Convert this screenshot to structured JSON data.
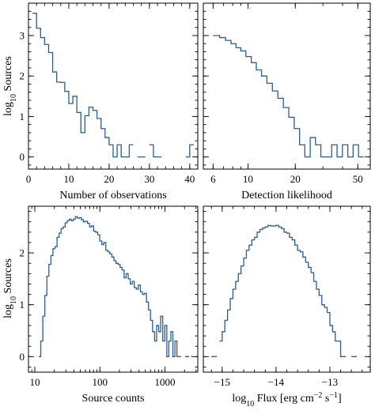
{
  "chart_data": [
    {
      "type": "step",
      "xlabel": "Number of observations",
      "ylabel": "log10 Sources",
      "xscale": "linear",
      "xlim": [
        0,
        42
      ],
      "ylim": [
        -0.3,
        3.8
      ],
      "xticks": [
        {
          "v": 0,
          "label": "0"
        },
        {
          "v": 10,
          "label": "10"
        },
        {
          "v": 20,
          "label": "20"
        },
        {
          "v": 30,
          "label": "30"
        },
        {
          "v": 40,
          "label": "40"
        }
      ],
      "yticks": [
        {
          "v": 0,
          "label": "0"
        },
        {
          "v": 1,
          "label": "1"
        },
        {
          "v": 2,
          "label": "2"
        },
        {
          "v": 3,
          "label": "3"
        }
      ],
      "bin_edges": [
        1,
        2,
        3,
        4,
        5,
        6,
        7,
        8,
        9,
        10,
        11,
        12,
        13,
        14,
        15,
        16,
        17,
        18,
        19,
        20,
        21,
        22,
        23,
        24,
        25,
        26,
        27,
        28,
        29,
        30,
        31,
        32,
        33,
        34,
        35,
        36,
        37,
        38,
        39,
        40,
        41
      ],
      "values": [
        3.55,
        3.18,
        2.95,
        2.78,
        2.58,
        2.1,
        1.85,
        1.84,
        1.62,
        1.32,
        1.5,
        1.1,
        0.6,
        1.02,
        1.23,
        1.15,
        0.95,
        0.7,
        0.48,
        0.3,
        0.0,
        0.3,
        0.0,
        0.0,
        0.3,
        null,
        0.0,
        0.0,
        null,
        0.3,
        0.0,
        0.0,
        null,
        null,
        null,
        null,
        null,
        null,
        0.0,
        0.3
      ]
    },
    {
      "type": "step",
      "xlabel": "Detection likelihood",
      "ylabel": "",
      "xscale": "log",
      "xlim": [
        5.2,
        60
      ],
      "ylim": [
        -0.3,
        3.8
      ],
      "xticks": [
        {
          "v": 6,
          "label": "6"
        },
        {
          "v": 10,
          "label": "10"
        },
        {
          "v": 20,
          "label": "20"
        },
        {
          "v": 50,
          "label": "50"
        }
      ],
      "yticks": [
        {
          "v": 0,
          "label": ""
        },
        {
          "v": 1,
          "label": ""
        },
        {
          "v": 2,
          "label": ""
        },
        {
          "v": 3,
          "label": ""
        }
      ],
      "bin_edges": [
        6.0,
        6.6,
        7.2,
        7.8,
        8.4,
        9.0,
        9.7,
        10.5,
        11.3,
        12.2,
        13.2,
        14.3,
        15.5,
        16.8,
        18.2,
        19.7,
        21.3,
        23.0,
        24.9,
        26.9,
        29.1,
        31.5,
        34.1,
        36.9,
        39.9,
        43.2,
        46.7,
        50.5,
        54.6
      ],
      "values": [
        3.0,
        2.95,
        2.88,
        2.8,
        2.7,
        2.62,
        2.48,
        2.33,
        2.15,
        2.0,
        1.82,
        1.63,
        1.45,
        1.22,
        0.98,
        0.7,
        0.3,
        0.0,
        0.48,
        0.3,
        0.0,
        0.0,
        0.3,
        0.0,
        0.3,
        0.0,
        0.3,
        0.0
      ]
    },
    {
      "type": "step",
      "xlabel": "Source counts",
      "ylabel": "log10 Sources",
      "xscale": "log",
      "xlim": [
        8,
        3200
      ],
      "ylim": [
        -0.3,
        2.9
      ],
      "xticks": [
        {
          "v": 10,
          "label": "10"
        },
        {
          "v": 100,
          "label": "100"
        },
        {
          "v": 1000,
          "label": "1000"
        }
      ],
      "yticks": [
        {
          "v": 0,
          "label": "0"
        },
        {
          "v": 1,
          "label": "1"
        },
        {
          "v": 2,
          "label": "2"
        }
      ],
      "bin_edges": [
        11.5,
        12.36,
        13.28,
        14.27,
        15.34,
        16.48,
        17.71,
        19.03,
        20.45,
        21.98,
        23.62,
        25.38,
        27.27,
        29.3,
        31.49,
        33.84,
        36.36,
        39.07,
        41.99,
        45.12,
        48.48,
        52.1,
        55.98,
        60.16,
        64.64,
        69.46,
        74.64,
        80.21,
        86.19,
        92.62,
        99.53,
        106.95,
        114.93,
        123.5,
        132.71,
        142.61,
        153.25,
        164.68,
        176.96,
        190.15,
        204.33,
        219.57,
        235.95,
        253.54,
        272.45,
        292.77,
        314.6,
        338.07,
        363.28,
        390.37,
        419.48,
        450.77,
        484.39,
        520.51,
        559.33,
        601.05,
        645.87,
        694.04,
        745.8,
        801.43,
        861.2,
        925.43,
        994.45,
        1068.61,
        1148.31,
        1233.95,
        1325.98,
        1424.87,
        1531.14,
        1645.33,
        1768.04,
        1899.9,
        2041.6,
        2193.86,
        2357.48,
        2533.31,
        2722.24
      ],
      "values": [
        0.0,
        0.3,
        0.78,
        1.18,
        1.55,
        1.78,
        1.95,
        2.08,
        2.12,
        2.3,
        2.38,
        2.47,
        2.5,
        2.58,
        2.62,
        2.65,
        2.62,
        2.65,
        2.7,
        2.67,
        2.68,
        2.64,
        2.6,
        2.61,
        2.57,
        2.5,
        2.52,
        2.42,
        2.4,
        2.35,
        2.23,
        2.16,
        2.2,
        2.05,
        2.02,
        1.98,
        1.92,
        1.85,
        1.8,
        1.78,
        1.72,
        1.67,
        1.52,
        1.6,
        1.5,
        1.4,
        1.45,
        1.33,
        1.3,
        1.38,
        1.25,
        1.2,
        1.22,
        1.05,
        0.9,
        0.7,
        0.48,
        0.3,
        0.6,
        0.48,
        0.78,
        0.3,
        0.6,
        0.0,
        0.3,
        0.48,
        0.0,
        0.3,
        0.0,
        0.0,
        null,
        null,
        0.0,
        0.0,
        null,
        0.0
      ]
    },
    {
      "type": "step",
      "xlabel": "log10 Flux [erg cm−2 s−1]",
      "ylabel": "",
      "xscale": "linear",
      "xlim": [
        -15.35,
        -12.25
      ],
      "ylim": [
        -0.3,
        2.9
      ],
      "xticks": [
        {
          "v": -15,
          "label": "−15"
        },
        {
          "v": -14,
          "label": "−14"
        },
        {
          "v": -13,
          "label": "−13"
        }
      ],
      "yticks": [
        {
          "v": 0,
          "label": ""
        },
        {
          "v": 1,
          "label": ""
        },
        {
          "v": 2,
          "label": ""
        }
      ],
      "bin_edges": [
        -15.2,
        -15.15,
        -15.1,
        -15.05,
        -15.0,
        -14.95,
        -14.9,
        -14.85,
        -14.8,
        -14.75,
        -14.7,
        -14.65,
        -14.6,
        -14.55,
        -14.5,
        -14.45,
        -14.4,
        -14.35,
        -14.3,
        -14.25,
        -14.2,
        -14.15,
        -14.1,
        -14.05,
        -14.0,
        -13.95,
        -13.9,
        -13.85,
        -13.8,
        -13.75,
        -13.7,
        -13.65,
        -13.6,
        -13.55,
        -13.5,
        -13.45,
        -13.4,
        -13.35,
        -13.3,
        -13.25,
        -13.2,
        -13.15,
        -13.1,
        -13.05,
        -13.0,
        -12.95,
        -12.9,
        -12.85,
        -12.8,
        -12.75,
        -12.7,
        -12.65,
        -12.6,
        -12.55,
        -12.5
      ],
      "values": [
        0.0,
        0.0,
        null,
        0.3,
        0.48,
        0.7,
        0.9,
        1.12,
        1.3,
        1.45,
        1.6,
        1.75,
        1.9,
        2.05,
        2.15,
        2.25,
        2.3,
        2.4,
        2.45,
        2.48,
        2.5,
        2.53,
        2.52,
        2.52,
        2.53,
        2.5,
        2.47,
        2.4,
        2.38,
        2.3,
        2.25,
        2.15,
        2.05,
        2.02,
        1.92,
        1.82,
        1.72,
        1.62,
        1.45,
        1.3,
        1.18,
        1.0,
        0.95,
        0.85,
        0.6,
        0.48,
        0.3,
        0.3,
        0.0,
        0.0,
        null,
        null,
        0.0,
        0.0
      ]
    }
  ]
}
